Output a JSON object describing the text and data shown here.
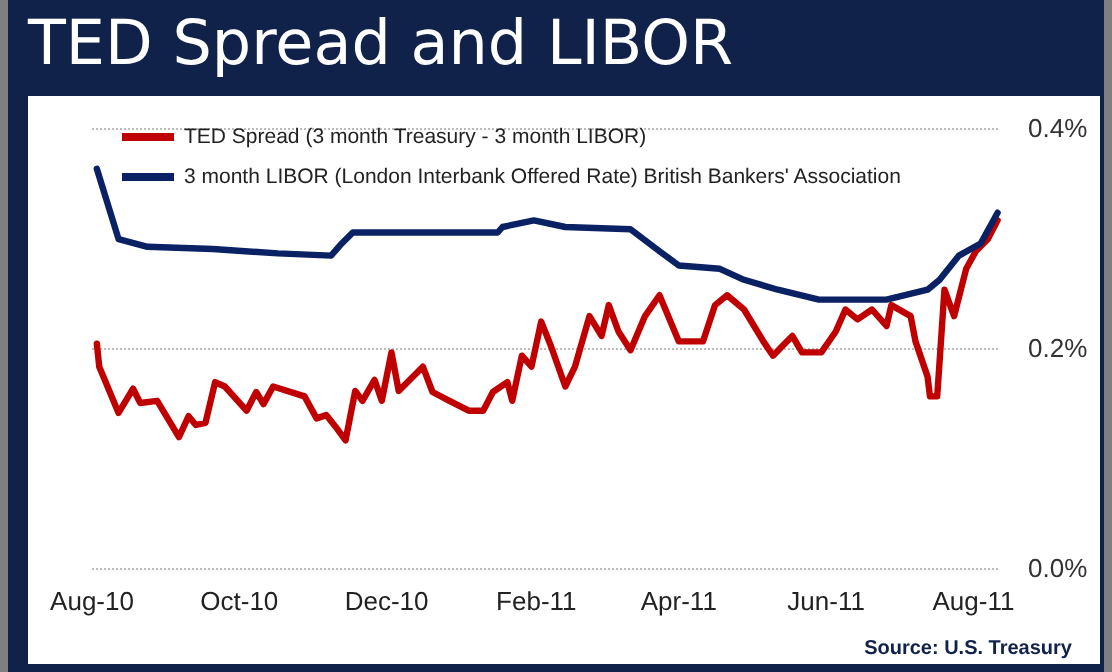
{
  "chart_data": {
    "type": "line",
    "title": "TED Spread and LIBOR",
    "annotations": [
      "Source:  U.S. Treasury"
    ],
    "xlim": [
      "2010-08-01",
      "2011-08-12"
    ],
    "xticks": [
      {
        "value": "2010-08-01",
        "label": "Aug-10"
      },
      {
        "value": "2010-10-01",
        "label": "Oct-10"
      },
      {
        "value": "2010-12-01",
        "label": "Dec-10"
      },
      {
        "value": "2011-02-01",
        "label": "Feb-11"
      },
      {
        "value": "2011-04-01",
        "label": "Apr-11"
      },
      {
        "value": "2011-06-01",
        "label": "Jun-11"
      },
      {
        "value": "2011-08-01",
        "label": "Aug-11"
      }
    ],
    "ylim": [
      0,
      0.4
    ],
    "yticks": [
      {
        "value": 0,
        "label": "0.0%"
      },
      {
        "value": 0.2,
        "label": "0.2%"
      },
      {
        "value": 0.4,
        "label": "0.4%"
      }
    ],
    "grid": "y",
    "legend": "top left",
    "marker": "none",
    "line_style": "solid",
    "series": [
      {
        "name": "TED Spread (3 month Treasury - 3 month LIBOR)",
        "color": "#c00000",
        "x": [
          "2010-08-03",
          "2010-08-04",
          "2010-08-12",
          "2010-08-18",
          "2010-08-21",
          "2010-08-28",
          "2010-09-06",
          "2010-09-10",
          "2010-09-13",
          "2010-09-17",
          "2010-09-21",
          "2010-09-25",
          "2010-10-04",
          "2010-10-08",
          "2010-10-11",
          "2010-10-15",
          "2010-10-28",
          "2010-11-02",
          "2010-11-06",
          "2010-11-10",
          "2010-11-14",
          "2010-11-18",
          "2010-11-21",
          "2010-11-26",
          "2010-11-29",
          "2010-12-03",
          "2010-12-06",
          "2010-12-16",
          "2010-12-20",
          "2010-12-27",
          "2011-01-04",
          "2011-01-10",
          "2011-01-14",
          "2011-01-20",
          "2011-01-22",
          "2011-01-26",
          "2011-01-30",
          "2011-02-03",
          "2011-02-07",
          "2011-02-13",
          "2011-02-17",
          "2011-02-23",
          "2011-02-28",
          "2011-03-03",
          "2011-03-07",
          "2011-03-12",
          "2011-03-18",
          "2011-03-24",
          "2011-04-01",
          "2011-04-11",
          "2011-04-16",
          "2011-04-21",
          "2011-04-28",
          "2011-05-06",
          "2011-05-10",
          "2011-05-14",
          "2011-05-18",
          "2011-05-22",
          "2011-05-30",
          "2011-06-05",
          "2011-06-09",
          "2011-06-14",
          "2011-06-20",
          "2011-06-26",
          "2011-06-28",
          "2011-07-06",
          "2011-07-08",
          "2011-07-13",
          "2011-07-14",
          "2011-07-17",
          "2011-07-20",
          "2011-07-24",
          "2011-07-29",
          "2011-08-02",
          "2011-08-07",
          "2011-08-11"
        ],
        "values": [
          0.204,
          0.183,
          0.141,
          0.163,
          0.15,
          0.152,
          0.119,
          0.138,
          0.13,
          0.132,
          0.169,
          0.165,
          0.143,
          0.16,
          0.149,
          0.165,
          0.156,
          0.136,
          0.139,
          0.128,
          0.116,
          0.161,
          0.152,
          0.171,
          0.152,
          0.196,
          0.161,
          0.183,
          0.16,
          0.152,
          0.143,
          0.143,
          0.16,
          0.169,
          0.152,
          0.193,
          0.183,
          0.224,
          0.202,
          0.165,
          0.183,
          0.229,
          0.211,
          0.239,
          0.215,
          0.198,
          0.229,
          0.248,
          0.206,
          0.206,
          0.239,
          0.248,
          0.235,
          0.206,
          0.193,
          0.202,
          0.211,
          0.196,
          0.196,
          0.215,
          0.235,
          0.226,
          0.235,
          0.22,
          0.239,
          0.229,
          0.206,
          0.174,
          0.156,
          0.156,
          0.253,
          0.229,
          0.272,
          0.288,
          0.299,
          0.316
        ]
      },
      {
        "name": "3 month LIBOR (London Interbank Offered Rate) British Bankers' Association",
        "color": "#0a2164",
        "x": [
          "2010-08-03",
          "2010-08-12",
          "2010-08-24",
          "2010-09-20",
          "2010-10-17",
          "2010-11-08",
          "2010-11-12",
          "2010-11-17",
          "2011-01-16",
          "2011-01-18",
          "2011-01-31",
          "2011-02-13",
          "2011-03-12",
          "2011-03-24",
          "2011-04-01",
          "2011-04-18",
          "2011-04-28",
          "2011-05-12",
          "2011-05-29",
          "2011-06-26",
          "2011-07-13",
          "2011-07-18",
          "2011-07-26",
          "2011-08-04",
          "2011-08-11"
        ],
        "values": [
          0.363,
          0.299,
          0.292,
          0.29,
          0.286,
          0.284,
          0.294,
          0.305,
          0.305,
          0.31,
          0.316,
          0.31,
          0.308,
          0.288,
          0.275,
          0.272,
          0.262,
          0.253,
          0.244,
          0.244,
          0.253,
          0.262,
          0.284,
          0.295,
          0.323
        ]
      }
    ]
  }
}
